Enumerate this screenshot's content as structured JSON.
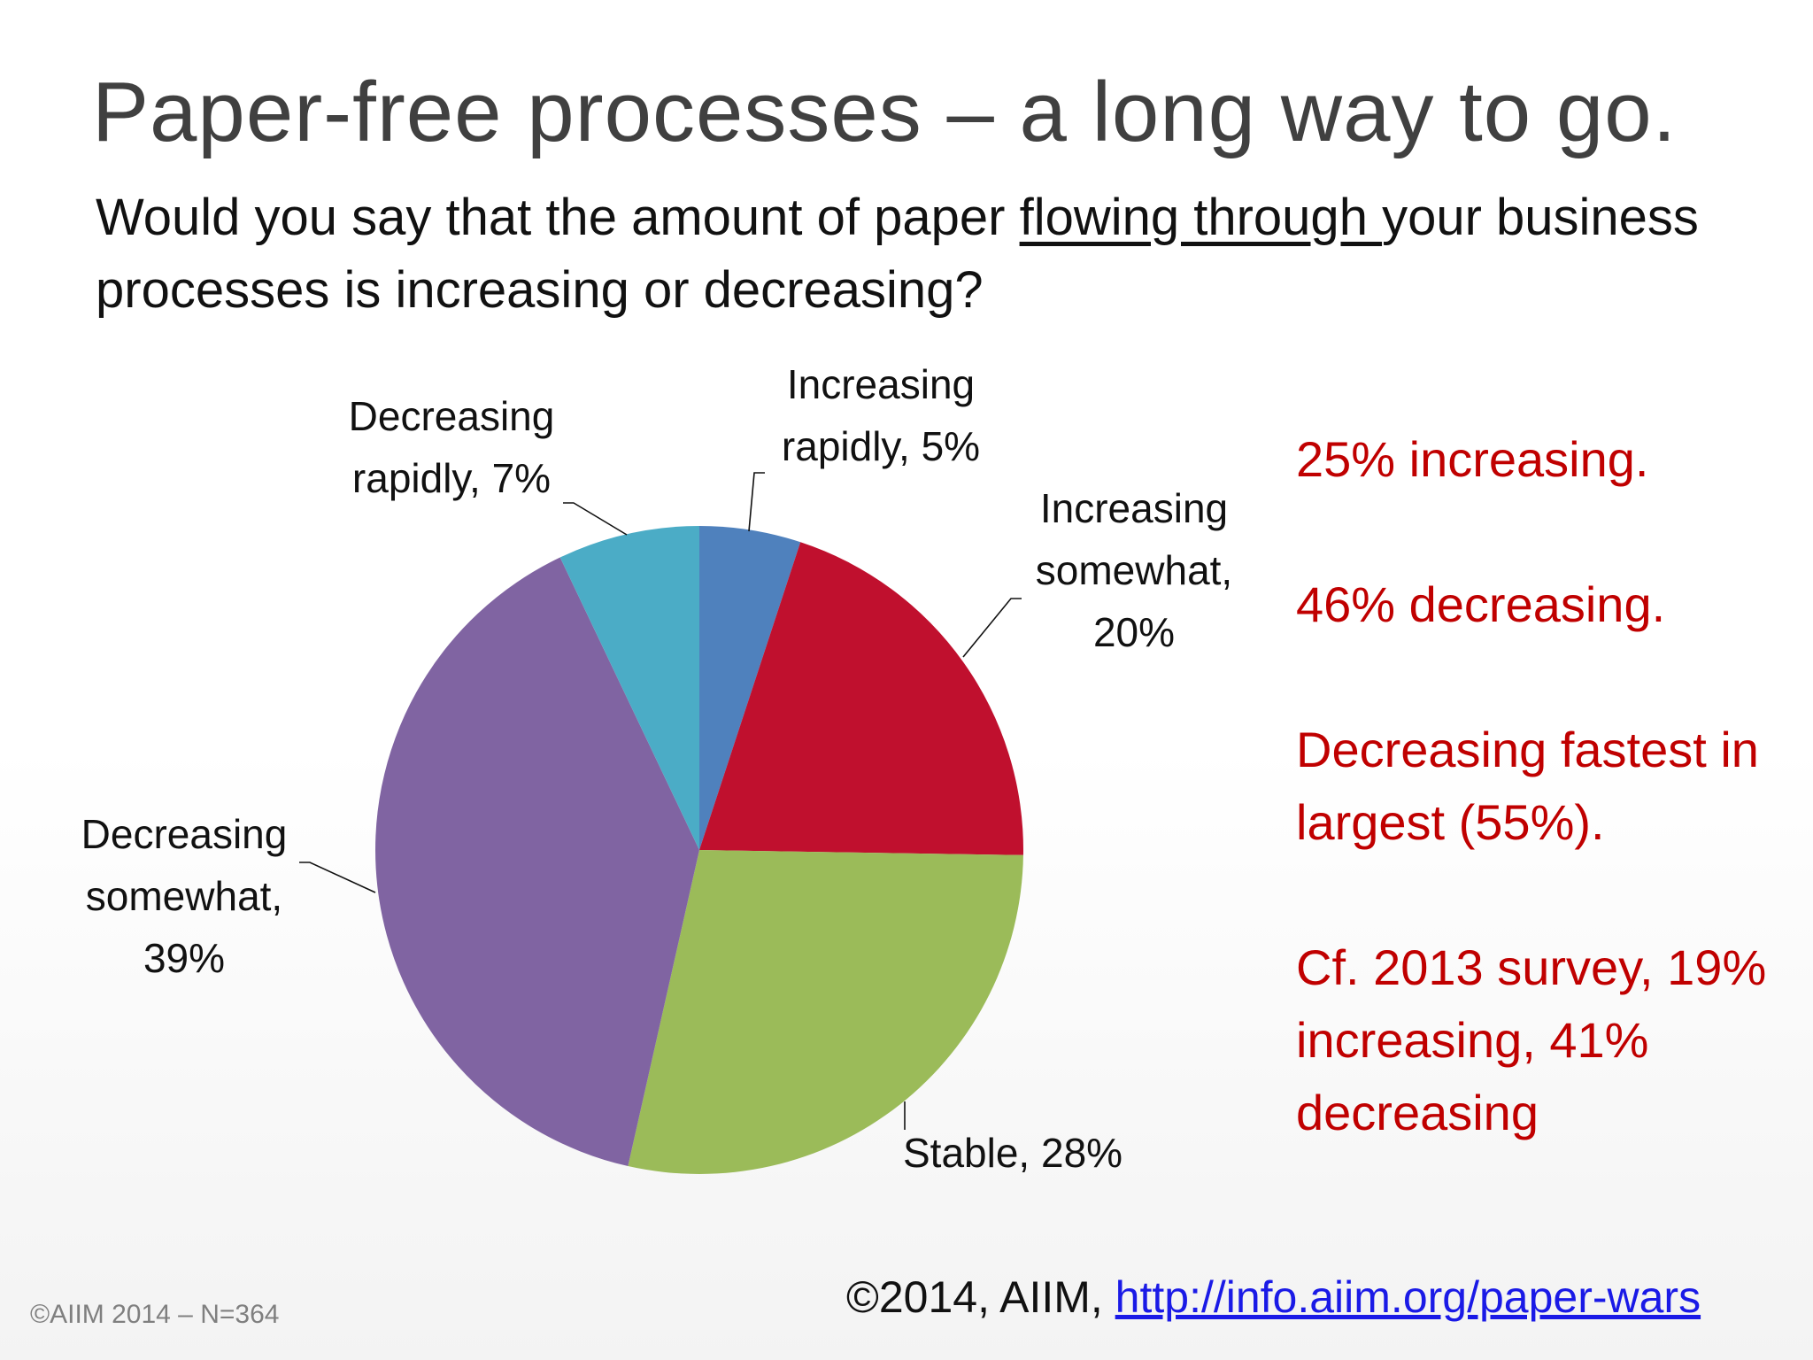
{
  "slide": {
    "title": "Paper-free processes – a long way to go.",
    "question_pre": "Would you say that the amount of paper ",
    "question_underlined": "flowing through ",
    "question_post": "your business processes is increasing or decreasing?"
  },
  "notes": [
    "25% increasing.",
    "46% decreasing.",
    "Decreasing fastest in largest (55%).",
    "Cf. 2013 survey, 19% increasing, 41% decreasing"
  ],
  "footer": {
    "left": "©AIIM 2014 – N=364",
    "right_prefix": "©2014, AIIM, ",
    "link": "http://info.aiim.org/paper-wars"
  },
  "chart_data": {
    "type": "pie",
    "start": "12 o'clock",
    "direction": "clockwise",
    "slices": [
      {
        "label": "Increasing rapidly",
        "value": 5,
        "label_lines": [
          "Increasing",
          "rapidly, 5%"
        ],
        "color": "#4f81bd"
      },
      {
        "label": "Increasing somewhat",
        "value": 20,
        "label_lines": [
          "Increasing",
          "somewhat,",
          "20%"
        ],
        "color": "#c0102e"
      },
      {
        "label": "Stable",
        "value": 28,
        "label_lines": [
          "Stable, 28%"
        ],
        "color": "#9bbb59"
      },
      {
        "label": "Decreasing somewhat",
        "value": 39,
        "label_lines": [
          "Decreasing",
          "somewhat,",
          "39%"
        ],
        "color": "#8064a2"
      },
      {
        "label": "Decreasing rapidly",
        "value": 7,
        "label_lines": [
          "Decreasing",
          "rapidly, 7%"
        ],
        "color": "#4bacc6"
      }
    ]
  }
}
